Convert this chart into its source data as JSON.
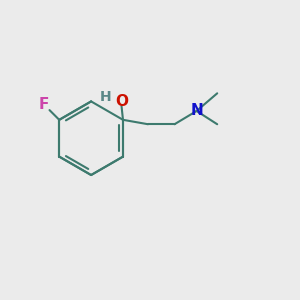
{
  "bg_color": "#ebebeb",
  "bond_color": "#3d7a6e",
  "F_color": "#cc44aa",
  "O_color": "#cc1100",
  "H_color": "#5a8888",
  "N_color": "#1111cc",
  "line_width": 1.5,
  "figsize": [
    3.0,
    3.0
  ],
  "dpi": 100,
  "xlim": [
    0,
    10
  ],
  "ylim": [
    0,
    10
  ]
}
